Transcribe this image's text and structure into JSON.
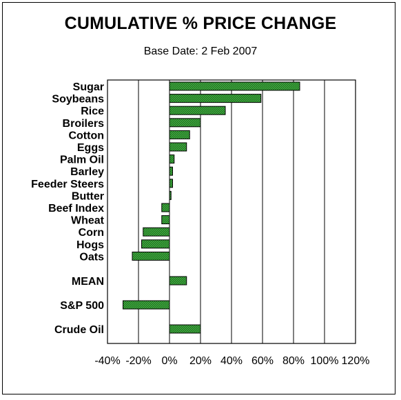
{
  "chart_data": {
    "type": "bar",
    "orientation": "horizontal",
    "title": "CUMULATIVE % PRICE CHANGE",
    "subtitle": "Base Date: 2 Feb 2007",
    "xlim": [
      -40,
      120
    ],
    "xticks": [
      "-40%",
      "-20%",
      "0%",
      "20%",
      "40%",
      "60%",
      "80%",
      "100%",
      "120%"
    ],
    "grid": true,
    "bar_color": "#1f7a1f",
    "categories": [
      "Sugar",
      "Soybeans",
      "Rice",
      "Broilers",
      "Cotton",
      "Eggs",
      "Palm Oil",
      "Barley",
      "Feeder Steers",
      "Butter",
      "Beef Index",
      "Wheat",
      "Corn",
      "Hogs",
      "Oats",
      "MEAN",
      "S&P 500",
      "Crude Oil"
    ],
    "values": [
      84,
      59,
      36,
      20,
      13,
      11,
      3,
      2,
      2,
      1,
      -5,
      -5,
      -17,
      -18,
      -24,
      11,
      -30,
      20
    ]
  }
}
